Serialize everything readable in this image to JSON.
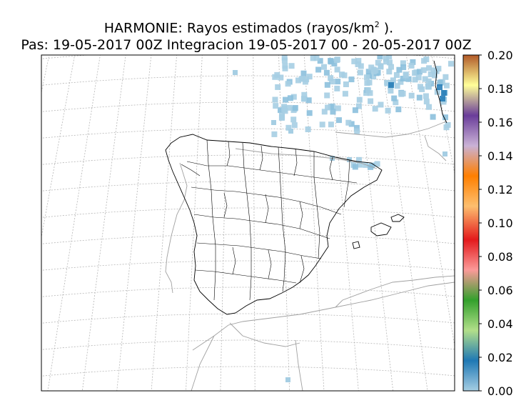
{
  "title": {
    "line1_main": "HARMONIE: Rayos estimados  (rayos/km",
    "line1_sup": "2",
    "line1_end": " ).",
    "line2": "Pas: 19-05-2017 00Z Integracion 19-05-2017 00 - 20-05-2017 00Z"
  },
  "colorbar": {
    "ticks": [
      "0.20",
      "0.18",
      "0.16",
      "0.14",
      "0.12",
      "0.10",
      "0.08",
      "0.06",
      "0.04",
      "0.02",
      "0.00"
    ],
    "stops": [
      "#a6cee3",
      "#1f78b4",
      "#b2df8a",
      "#33a02c",
      "#fb9a99",
      "#e31a1c",
      "#fdbf6f",
      "#ff7f00",
      "#cab2d6",
      "#6a3d9a",
      "#ffff99",
      "#b15928"
    ]
  },
  "map": {
    "region": "Iberian Peninsula",
    "field": "estimated lightning density",
    "colors": {
      "light": "#a6cee3",
      "mid": "#8cc0dd",
      "dark": "#1f78b4",
      "coast": "#000000",
      "border": "#9a9a9a",
      "grid": "#b0b0b0"
    }
  }
}
